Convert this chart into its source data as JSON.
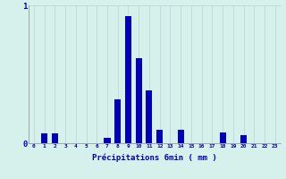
{
  "hours": [
    0,
    1,
    2,
    3,
    4,
    5,
    6,
    7,
    8,
    9,
    10,
    11,
    12,
    13,
    14,
    15,
    16,
    17,
    18,
    19,
    20,
    21,
    22,
    23
  ],
  "values": [
    0,
    0.07,
    0.07,
    0,
    0,
    0,
    0,
    0.04,
    0.32,
    0.92,
    0.62,
    0.38,
    0.1,
    0,
    0.1,
    0,
    0,
    0,
    0.08,
    0,
    0.06,
    0,
    0,
    0
  ],
  "bar_color": "#0000bb",
  "bg_color": "#d6f0ec",
  "grid_color": "#b8d4d0",
  "axis_color": "#888888",
  "text_color": "#0000bb",
  "xlabel": "Précipitations 6min ( mm )",
  "ylim": [
    0,
    1.0
  ],
  "yticks": [
    0,
    1
  ],
  "bar_width": 0.6
}
